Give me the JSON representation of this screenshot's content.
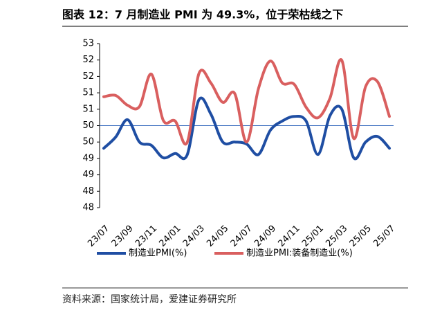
{
  "chart_data": {
    "type": "line",
    "title": "图表 12：7 月制造业 PMI 为 49.3%，位于荣枯线之下",
    "source": "资料来源：国家统计局，爱建证券研究所",
    "categories": [
      "23/07",
      null,
      "23/09",
      null,
      "23/11",
      null,
      "24/01",
      null,
      "24/03",
      null,
      "24/05",
      null,
      "24/07",
      null,
      "24/09",
      null,
      "24/11",
      null,
      "25/01",
      null,
      "25/03",
      null,
      "25/05",
      null,
      "25/07"
    ],
    "series": [
      {
        "name": "制造业PMI(%)",
        "color": "#1f4ea3",
        "values": [
          49.81,
          50.15,
          50.68,
          50.0,
          49.9,
          49.52,
          49.65,
          49.6,
          51.29,
          50.85,
          50.0,
          50.0,
          49.94,
          49.62,
          50.36,
          50.64,
          50.78,
          50.64,
          49.62,
          50.8,
          51.0,
          49.52,
          50.0,
          50.17,
          49.81
        ]
      },
      {
        "name": "制造业PMI:装备制造业(%)",
        "color": "#d95f5f",
        "values": [
          51.38,
          51.42,
          51.12,
          51.08,
          52.07,
          50.66,
          50.64,
          49.98,
          52.09,
          51.8,
          51.21,
          51.48,
          50.0,
          51.63,
          52.47,
          51.8,
          51.76,
          51.06,
          50.74,
          51.33,
          52.49,
          50.11,
          51.69,
          51.84,
          50.78
        ]
      }
    ],
    "ylim": [
      48,
      53
    ],
    "yticks": [
      53,
      {
        "value": 52.5,
        "label": "52"
      },
      52,
      {
        "value": 51.5,
        "label": "51"
      },
      51,
      {
        "value": 50.5,
        "label": "50"
      },
      50,
      {
        "value": 49.5,
        "label": "49"
      },
      49,
      {
        "value": 48.5,
        "label": "48"
      },
      48
    ],
    "reference_line": 50.5,
    "reference_color": "#3d6fc0",
    "legend": "bottom"
  }
}
